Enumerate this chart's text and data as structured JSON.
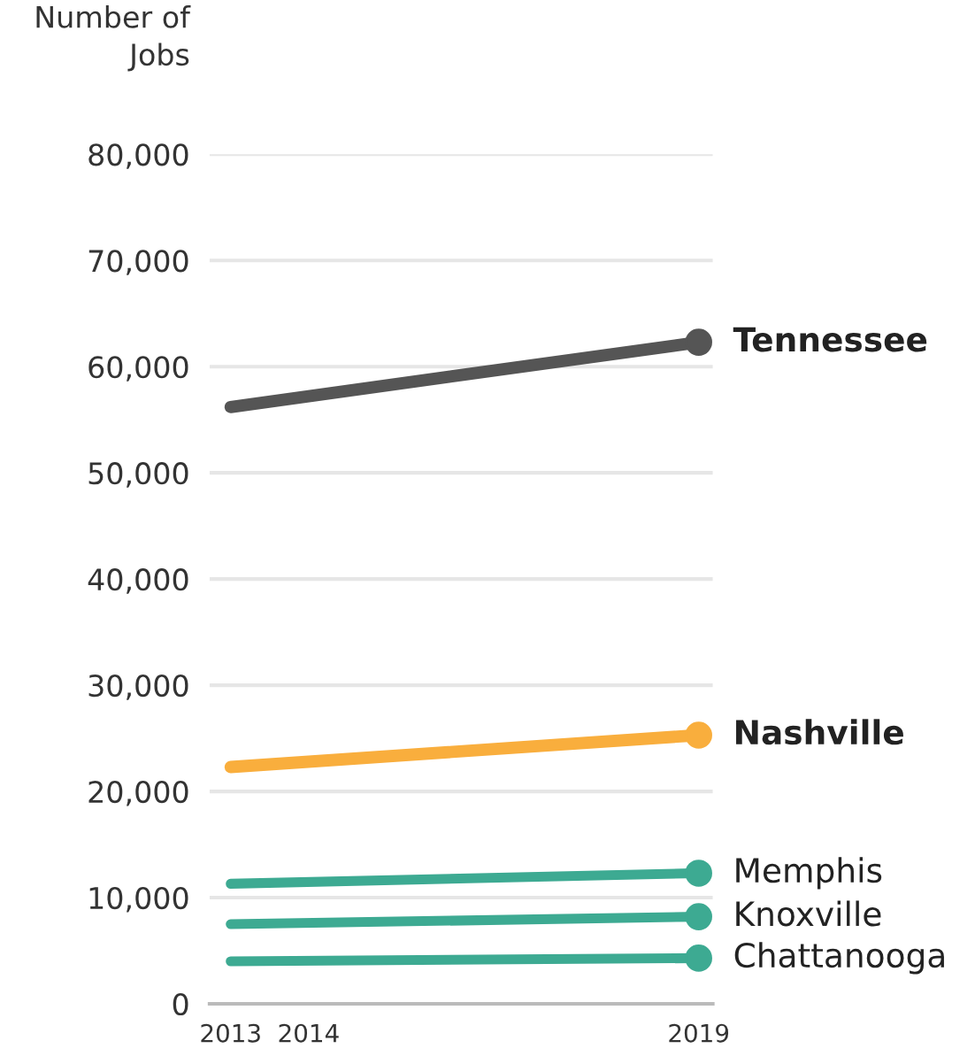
{
  "chart_data": {
    "type": "line",
    "ylabel": "Number of\nJobs",
    "x": [
      2013,
      2019
    ],
    "xlim": [
      2012.73,
      2019.18
    ],
    "xticks": [
      2013,
      2014,
      2019
    ],
    "ylim": [
      0,
      80000
    ],
    "yticks": [
      {
        "value": 0,
        "label": "0"
      },
      {
        "value": 10000,
        "label": "10,000"
      },
      {
        "value": 20000,
        "label": "20,000"
      },
      {
        "value": 30000,
        "label": "30,000"
      },
      {
        "value": 40000,
        "label": "40,000"
      },
      {
        "value": 50000,
        "label": "50,000"
      },
      {
        "value": 60000,
        "label": "60,000"
      },
      {
        "value": 70000,
        "label": "70,000"
      },
      {
        "value": 80000,
        "label": "80,000"
      }
    ],
    "grid": "y",
    "legend": false,
    "marker": "circle",
    "line_style": "solid",
    "series": [
      {
        "name": "Tennessee",
        "color": "#555555",
        "values": [
          56200,
          62300
        ]
      },
      {
        "name": "Nashville",
        "color": "#f9ae3d",
        "values": [
          22300,
          25300
        ]
      },
      {
        "name": "Memphis",
        "color": "#3daa92",
        "values": [
          11300,
          12300
        ]
      },
      {
        "name": "Knoxville",
        "color": "#3daa92",
        "values": [
          7500,
          8200
        ]
      },
      {
        "name": "Chattanooga",
        "color": "#3daa92",
        "values": [
          4000,
          4300
        ]
      }
    ]
  }
}
